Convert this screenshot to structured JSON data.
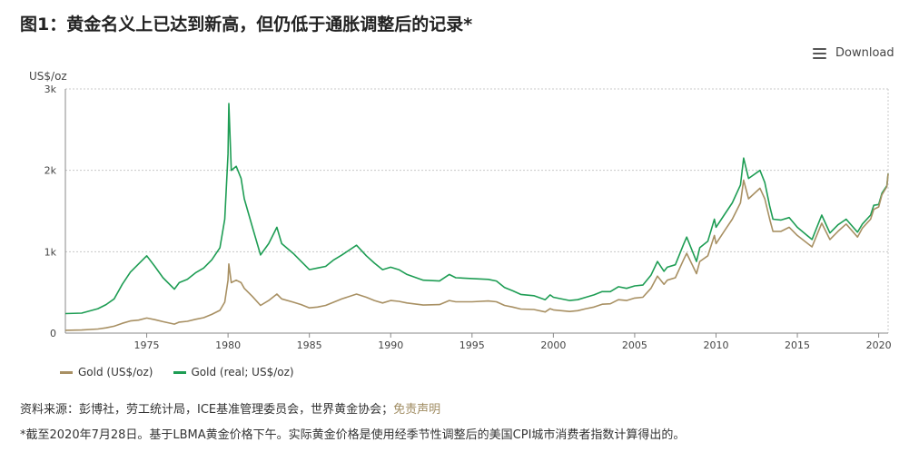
{
  "title": "图1：黄金名义上已达到新高，但仍低于通胀调整后的记录*",
  "download_label": "Download",
  "icons": {
    "download": "hamburger-menu-icon"
  },
  "colors": {
    "nominal": "#a89063",
    "real": "#1e9d54",
    "grid": "#c8c8c8",
    "axis": "#888888"
  },
  "source": {
    "prefix": "资料来源：彭博社，劳工统计局，ICE基准管理委员会，世界黄金协会；",
    "link": "免责声明"
  },
  "note": "*截至2020年7月28日。基于LBMA黄金价格下午。实际黄金价格是使用经季节性调整后的美国CPI城市消费者指数计算得出的。",
  "chart_data": {
    "type": "line",
    "title": "图1：黄金名义上已达到新高，但仍低于通胀调整后的记录*",
    "ylabel": "US$/oz",
    "xlabel": "",
    "xlim": [
      1970,
      2020.58
    ],
    "ylim": [
      0,
      3000
    ],
    "y_ticks": [
      {
        "value": 0,
        "label": "0"
      },
      {
        "value": 1000,
        "label": "1k"
      },
      {
        "value": 2000,
        "label": "2k"
      },
      {
        "value": 3000,
        "label": "3k"
      }
    ],
    "x_ticks": [
      1975,
      1980,
      1985,
      1990,
      1995,
      2000,
      2005,
      2010,
      2015,
      2020
    ],
    "grid": true,
    "legend_position": "bottom-left",
    "series": [
      {
        "name": "Gold (US$/oz)",
        "color": "#a89063",
        "points": [
          [
            1970.0,
            35
          ],
          [
            1971.0,
            38
          ],
          [
            1972.0,
            50
          ],
          [
            1972.5,
            65
          ],
          [
            1973.0,
            85
          ],
          [
            1973.5,
            120
          ],
          [
            1974.0,
            150
          ],
          [
            1974.5,
            160
          ],
          [
            1975.0,
            185
          ],
          [
            1975.5,
            165
          ],
          [
            1976.0,
            140
          ],
          [
            1976.7,
            110
          ],
          [
            1977.0,
            135
          ],
          [
            1977.5,
            145
          ],
          [
            1978.0,
            170
          ],
          [
            1978.5,
            190
          ],
          [
            1979.0,
            230
          ],
          [
            1979.5,
            280
          ],
          [
            1979.8,
            380
          ],
          [
            1980.0,
            650
          ],
          [
            1980.05,
            850
          ],
          [
            1980.2,
            620
          ],
          [
            1980.5,
            650
          ],
          [
            1980.8,
            620
          ],
          [
            1981.0,
            550
          ],
          [
            1981.5,
            450
          ],
          [
            1982.0,
            340
          ],
          [
            1982.5,
            400
          ],
          [
            1983.0,
            480
          ],
          [
            1983.3,
            420
          ],
          [
            1984.0,
            380
          ],
          [
            1984.5,
            350
          ],
          [
            1985.0,
            310
          ],
          [
            1985.5,
            320
          ],
          [
            1986.0,
            340
          ],
          [
            1986.5,
            380
          ],
          [
            1987.0,
            420
          ],
          [
            1987.9,
            480
          ],
          [
            1988.5,
            440
          ],
          [
            1989.0,
            400
          ],
          [
            1989.5,
            370
          ],
          [
            1990.0,
            400
          ],
          [
            1990.5,
            390
          ],
          [
            1991.0,
            370
          ],
          [
            1992.0,
            345
          ],
          [
            1993.0,
            350
          ],
          [
            1993.6,
            400
          ],
          [
            1994.0,
            385
          ],
          [
            1995.0,
            385
          ],
          [
            1996.0,
            395
          ],
          [
            1996.5,
            385
          ],
          [
            1997.0,
            340
          ],
          [
            1997.5,
            320
          ],
          [
            1998.0,
            295
          ],
          [
            1998.8,
            290
          ],
          [
            1999.5,
            260
          ],
          [
            1999.8,
            300
          ],
          [
            2000.0,
            285
          ],
          [
            2001.0,
            265
          ],
          [
            2001.5,
            275
          ],
          [
            2002.0,
            300
          ],
          [
            2002.5,
            320
          ],
          [
            2003.0,
            355
          ],
          [
            2003.5,
            360
          ],
          [
            2004.0,
            410
          ],
          [
            2004.5,
            400
          ],
          [
            2005.0,
            430
          ],
          [
            2005.5,
            440
          ],
          [
            2006.0,
            550
          ],
          [
            2006.4,
            700
          ],
          [
            2006.8,
            600
          ],
          [
            2007.0,
            650
          ],
          [
            2007.5,
            680
          ],
          [
            2008.0,
            900
          ],
          [
            2008.2,
            980
          ],
          [
            2008.8,
            730
          ],
          [
            2009.0,
            880
          ],
          [
            2009.5,
            950
          ],
          [
            2009.9,
            1200
          ],
          [
            2010.0,
            1100
          ],
          [
            2010.5,
            1250
          ],
          [
            2011.0,
            1400
          ],
          [
            2011.5,
            1600
          ],
          [
            2011.7,
            1880
          ],
          [
            2012.0,
            1650
          ],
          [
            2012.7,
            1780
          ],
          [
            2013.0,
            1650
          ],
          [
            2013.3,
            1400
          ],
          [
            2013.5,
            1250
          ],
          [
            2014.0,
            1250
          ],
          [
            2014.5,
            1300
          ],
          [
            2015.0,
            1200
          ],
          [
            2015.9,
            1060
          ],
          [
            2016.5,
            1350
          ],
          [
            2017.0,
            1150
          ],
          [
            2017.5,
            1250
          ],
          [
            2018.0,
            1340
          ],
          [
            2018.7,
            1180
          ],
          [
            2019.0,
            1290
          ],
          [
            2019.5,
            1400
          ],
          [
            2019.7,
            1520
          ],
          [
            2020.0,
            1550
          ],
          [
            2020.2,
            1700
          ],
          [
            2020.5,
            1800
          ],
          [
            2020.58,
            1960
          ]
        ]
      },
      {
        "name": "Gold (real; US$/oz)",
        "color": "#1e9d54",
        "points": [
          [
            1970.0,
            240
          ],
          [
            1971.0,
            245
          ],
          [
            1972.0,
            300
          ],
          [
            1972.5,
            350
          ],
          [
            1973.0,
            420
          ],
          [
            1973.5,
            600
          ],
          [
            1974.0,
            750
          ],
          [
            1974.5,
            850
          ],
          [
            1975.0,
            950
          ],
          [
            1975.5,
            820
          ],
          [
            1976.0,
            680
          ],
          [
            1976.7,
            540
          ],
          [
            1977.0,
            620
          ],
          [
            1977.5,
            660
          ],
          [
            1978.0,
            740
          ],
          [
            1978.5,
            800
          ],
          [
            1979.0,
            900
          ],
          [
            1979.5,
            1050
          ],
          [
            1979.8,
            1400
          ],
          [
            1980.0,
            2200
          ],
          [
            1980.05,
            2820
          ],
          [
            1980.2,
            2000
          ],
          [
            1980.5,
            2050
          ],
          [
            1980.8,
            1900
          ],
          [
            1981.0,
            1650
          ],
          [
            1981.5,
            1300
          ],
          [
            1982.0,
            960
          ],
          [
            1982.5,
            1100
          ],
          [
            1983.0,
            1300
          ],
          [
            1983.3,
            1100
          ],
          [
            1984.0,
            980
          ],
          [
            1984.5,
            880
          ],
          [
            1985.0,
            780
          ],
          [
            1985.5,
            800
          ],
          [
            1986.0,
            820
          ],
          [
            1986.5,
            900
          ],
          [
            1987.0,
            960
          ],
          [
            1987.9,
            1080
          ],
          [
            1988.5,
            950
          ],
          [
            1989.0,
            860
          ],
          [
            1989.5,
            780
          ],
          [
            1990.0,
            810
          ],
          [
            1990.5,
            780
          ],
          [
            1991.0,
            720
          ],
          [
            1992.0,
            650
          ],
          [
            1993.0,
            640
          ],
          [
            1993.6,
            720
          ],
          [
            1994.0,
            680
          ],
          [
            1995.0,
            670
          ],
          [
            1996.0,
            660
          ],
          [
            1996.5,
            640
          ],
          [
            1997.0,
            560
          ],
          [
            1997.5,
            520
          ],
          [
            1998.0,
            475
          ],
          [
            1998.8,
            460
          ],
          [
            1999.5,
            410
          ],
          [
            1999.8,
            470
          ],
          [
            2000.0,
            440
          ],
          [
            2001.0,
            400
          ],
          [
            2001.5,
            410
          ],
          [
            2002.0,
            440
          ],
          [
            2002.5,
            470
          ],
          [
            2003.0,
            510
          ],
          [
            2003.5,
            510
          ],
          [
            2004.0,
            570
          ],
          [
            2004.5,
            550
          ],
          [
            2005.0,
            580
          ],
          [
            2005.5,
            590
          ],
          [
            2006.0,
            710
          ],
          [
            2006.4,
            880
          ],
          [
            2006.8,
            760
          ],
          [
            2007.0,
            810
          ],
          [
            2007.5,
            840
          ],
          [
            2008.0,
            1090
          ],
          [
            2008.2,
            1180
          ],
          [
            2008.8,
            880
          ],
          [
            2009.0,
            1050
          ],
          [
            2009.5,
            1130
          ],
          [
            2009.9,
            1400
          ],
          [
            2010.0,
            1300
          ],
          [
            2010.5,
            1450
          ],
          [
            2011.0,
            1600
          ],
          [
            2011.5,
            1820
          ],
          [
            2011.7,
            2150
          ],
          [
            2012.0,
            1900
          ],
          [
            2012.7,
            2000
          ],
          [
            2013.0,
            1850
          ],
          [
            2013.3,
            1560
          ],
          [
            2013.5,
            1400
          ],
          [
            2014.0,
            1390
          ],
          [
            2014.5,
            1420
          ],
          [
            2015.0,
            1300
          ],
          [
            2015.9,
            1150
          ],
          [
            2016.5,
            1450
          ],
          [
            2017.0,
            1230
          ],
          [
            2017.5,
            1330
          ],
          [
            2018.0,
            1400
          ],
          [
            2018.7,
            1240
          ],
          [
            2019.0,
            1340
          ],
          [
            2019.5,
            1450
          ],
          [
            2019.7,
            1570
          ],
          [
            2020.0,
            1580
          ],
          [
            2020.2,
            1720
          ],
          [
            2020.5,
            1810
          ],
          [
            2020.58,
            1960
          ]
        ]
      }
    ]
  }
}
